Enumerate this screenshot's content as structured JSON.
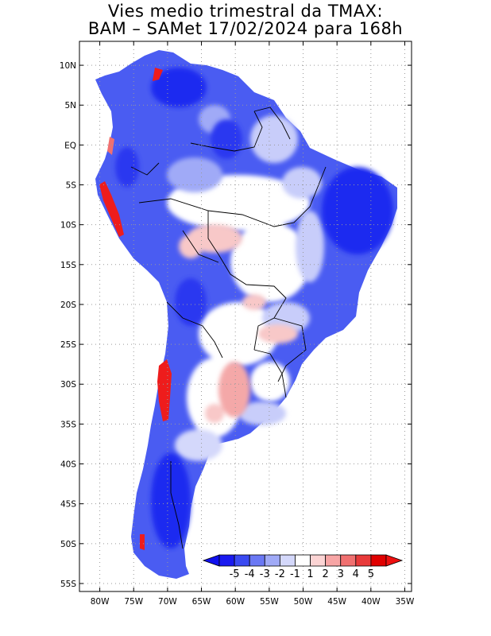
{
  "title": {
    "line1": "Vies medio trimestral da TMAX:",
    "line2": "BAM – SAMet 17/02/2024  para 168h"
  },
  "map": {
    "lon_range": [
      -83,
      -34
    ],
    "lat_range": [
      -56,
      13
    ],
    "lat_ticks": [
      {
        "value": 10,
        "label": "10N"
      },
      {
        "value": 5,
        "label": "5N"
      },
      {
        "value": 0,
        "label": "EQ"
      },
      {
        "value": -5,
        "label": "5S"
      },
      {
        "value": -10,
        "label": "10S"
      },
      {
        "value": -15,
        "label": "15S"
      },
      {
        "value": -20,
        "label": "20S"
      },
      {
        "value": -25,
        "label": "25S"
      },
      {
        "value": -30,
        "label": "30S"
      },
      {
        "value": -35,
        "label": "35S"
      },
      {
        "value": -40,
        "label": "40S"
      },
      {
        "value": -45,
        "label": "45S"
      },
      {
        "value": -50,
        "label": "50S"
      },
      {
        "value": -55,
        "label": "55S"
      }
    ],
    "lon_ticks": [
      {
        "value": -80,
        "label": "80W"
      },
      {
        "value": -75,
        "label": "75W"
      },
      {
        "value": -70,
        "label": "70W"
      },
      {
        "value": -65,
        "label": "65W"
      },
      {
        "value": -60,
        "label": "60W"
      },
      {
        "value": -55,
        "label": "55W"
      },
      {
        "value": -50,
        "label": "50W"
      },
      {
        "value": -45,
        "label": "45W"
      },
      {
        "value": -40,
        "label": "40W"
      },
      {
        "value": -35,
        "label": "35W"
      }
    ],
    "grid": "dotted",
    "colors": {
      "land_base": "#4a5cf2",
      "strong_blue": "#1f2cf0",
      "mid_blue": "#8a96f5",
      "light_blue": "#c8cdfa",
      "neutral": "#ffffff",
      "light_red": "#f8c8c8",
      "mid_red": "#f28a8a",
      "strong_red": "#ee1c1c",
      "border": "#000000"
    }
  },
  "colorbar": {
    "labels": [
      "-5",
      "-4",
      "-3",
      "-2",
      "-1",
      "1",
      "2",
      "3",
      "4",
      "5"
    ],
    "colors": [
      "#1a1af0",
      "#3a4af2",
      "#6a78f4",
      "#a0aaf7",
      "#d4d8fb",
      "#ffffff",
      "#fcd4d4",
      "#f7a5a5",
      "#f07070",
      "#e83a3a",
      "#e00000"
    ],
    "left_arrow_color": "#1010ee",
    "right_arrow_color": "#ee1010"
  }
}
